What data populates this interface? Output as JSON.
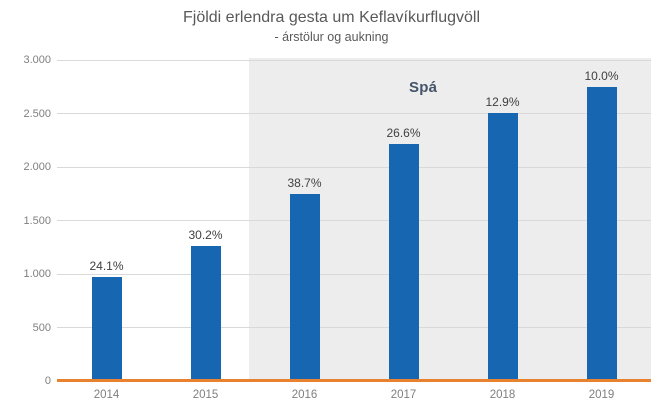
{
  "chart_data": {
    "type": "bar",
    "title": "Fjöldi erlendra gesta um Keflavíkurflugvöll",
    "subtitle": "- árstölur og aukning",
    "categories": [
      "2014",
      "2015",
      "2016",
      "2017",
      "2018",
      "2019"
    ],
    "values": [
      969,
      1262,
      1750,
      2216,
      2502,
      2752
    ],
    "growth_labels": [
      "24.1%",
      "30.2%",
      "38.7%",
      "26.6%",
      "12.9%",
      "10.0%"
    ],
    "ylim": [
      0,
      3000
    ],
    "y_ticks": [
      0,
      500,
      1000,
      1500,
      2000,
      2500,
      3000
    ],
    "y_tick_labels": [
      "0",
      "500",
      "1.000",
      "1.500",
      "2.000",
      "2.500",
      "3.000"
    ],
    "xlabel": "",
    "ylabel": "",
    "grid": true,
    "legend_position": "none",
    "forecast": {
      "label": "Spá",
      "start_category": "2016",
      "start_index": 2
    },
    "colors": {
      "bar": "#1666B1",
      "baseline": "#E8822E",
      "forecast_background": "#EDEDED",
      "gridline": "#D9D9D9",
      "forecast_label_text": "#44546A",
      "bar_label_text": "#404040",
      "axis_text": "#7F7F7F",
      "title_text": "#595959"
    }
  }
}
